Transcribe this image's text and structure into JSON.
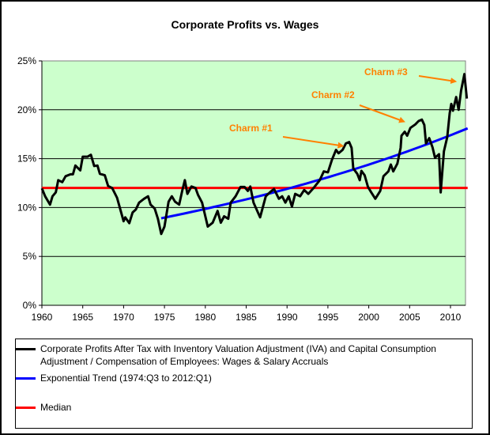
{
  "chart_data": {
    "type": "line",
    "title": "Corporate Profits vs. Wages",
    "xlabel": "",
    "ylabel": "",
    "xlim": [
      1960,
      2012.1
    ],
    "ylim": [
      0,
      25
    ],
    "x_ticks": [
      "1960",
      "1965",
      "1970",
      "1975",
      "1980",
      "1985",
      "1990",
      "1995",
      "2000",
      "2005",
      "2010"
    ],
    "y_ticks": [
      "0%",
      "5%",
      "10%",
      "15%",
      "20%",
      "25%"
    ],
    "grid": "horizontal",
    "plot_background": "#ccffcc",
    "legend_placement": "bottom",
    "series": [
      {
        "name": "Corporate Profits After Tax with Inventory Valuation Adjustment (IVA) and Capital Consumption Adjustment / Compensation of Employees: Wages & Salary Accruals",
        "color": "#000000",
        "x": [
          1960.0,
          1960.4,
          1961.0,
          1961.3,
          1961.7,
          1962.0,
          1962.5,
          1962.9,
          1963.5,
          1963.8,
          1964.1,
          1964.7,
          1965.0,
          1965.6,
          1966.0,
          1966.4,
          1966.8,
          1967.1,
          1967.7,
          1968.1,
          1968.6,
          1969.2,
          1970.0,
          1970.2,
          1970.7,
          1971.1,
          1971.5,
          1971.9,
          1972.5,
          1973.0,
          1973.3,
          1973.8,
          1974.2,
          1974.6,
          1975.0,
          1975.5,
          1975.9,
          1976.3,
          1976.8,
          1977.2,
          1977.5,
          1977.8,
          1978.3,
          1978.8,
          1979.1,
          1979.6,
          1980.3,
          1980.9,
          1981.5,
          1981.9,
          1982.3,
          1982.8,
          1983.1,
          1983.7,
          1984.3,
          1984.8,
          1985.2,
          1985.5,
          1985.9,
          1986.7,
          1987.4,
          1987.9,
          1988.4,
          1989.0,
          1989.4,
          1989.8,
          1990.2,
          1990.6,
          1991.0,
          1991.6,
          1992.1,
          1992.6,
          1993.2,
          1994.0,
          1994.5,
          1995.0,
          1995.5,
          1996.0,
          1996.3,
          1996.8,
          1997.2,
          1997.6,
          1997.9,
          1998.1,
          1998.6,
          1998.9,
          1999.1,
          1999.5,
          1999.9,
          2000.3,
          2000.8,
          2001.4,
          2001.8,
          2002.4,
          2002.7,
          2003.0,
          2003.5,
          2003.9,
          2004.0,
          2004.4,
          2004.7,
          2005.1,
          2005.7,
          2006.1,
          2006.5,
          2006.8,
          2007.0,
          2007.4,
          2007.8,
          2008.1,
          2008.6,
          2008.8,
          2009.0,
          2009.2,
          2009.6,
          2009.9,
          2010.1,
          2010.3,
          2010.7,
          2011.0,
          2011.3,
          2011.7,
          2012.0
        ],
        "y": [
          11.96,
          11.15,
          10.3,
          11.15,
          11.55,
          12.8,
          12.6,
          13.2,
          13.4,
          13.4,
          14.3,
          13.8,
          15.2,
          15.2,
          15.4,
          14.25,
          14.3,
          13.45,
          13.3,
          12.2,
          12.0,
          11.0,
          8.6,
          9.0,
          8.4,
          9.5,
          9.8,
          10.5,
          10.9,
          11.15,
          10.3,
          9.9,
          8.85,
          7.3,
          8.05,
          10.6,
          11.15,
          10.6,
          10.3,
          11.8,
          12.8,
          11.4,
          12.15,
          12.0,
          11.3,
          10.5,
          8.05,
          8.45,
          9.65,
          8.45,
          9.1,
          8.85,
          10.5,
          11.15,
          12.1,
          12.1,
          11.7,
          12.15,
          10.5,
          9.0,
          11.15,
          11.55,
          11.9,
          10.9,
          11.15,
          10.5,
          11.15,
          10.1,
          11.4,
          11.15,
          11.8,
          11.4,
          11.95,
          12.8,
          13.7,
          13.6,
          14.9,
          15.9,
          15.55,
          15.9,
          16.55,
          16.7,
          16.1,
          14.0,
          13.45,
          12.8,
          13.75,
          13.3,
          12.1,
          11.55,
          10.9,
          11.7,
          13.2,
          13.7,
          14.4,
          13.7,
          14.5,
          16.1,
          17.35,
          17.75,
          17.35,
          18.15,
          18.5,
          18.85,
          19.0,
          18.45,
          16.55,
          17.1,
          16.15,
          15.1,
          15.45,
          11.55,
          13.7,
          15.75,
          17.2,
          19.65,
          20.6,
          19.9,
          21.3,
          20.0,
          21.95,
          23.65,
          21.15
        ]
      },
      {
        "name": "Exponential Trend (1974:Q3 to 2012:Q1)",
        "color": "#0000ff",
        "type": "exponential",
        "x": [
          1974.6,
          2012.1
        ],
        "y": [
          8.9,
          18.1
        ]
      },
      {
        "name": "Median",
        "color": "#ff0000",
        "x": [
          1960,
          2012.1
        ],
        "y": [
          12.0,
          12.0
        ]
      }
    ],
    "annotations": [
      {
        "text": "Charm #1",
        "color": "#ff8000",
        "arrow_to": [
          1996.8,
          16.3
        ]
      },
      {
        "text": "Charm #2",
        "color": "#ff8000",
        "arrow_to": [
          2004.3,
          18.8
        ]
      },
      {
        "text": "Charm #3",
        "color": "#ff8000",
        "arrow_to": [
          2010.6,
          22.9
        ]
      }
    ]
  }
}
